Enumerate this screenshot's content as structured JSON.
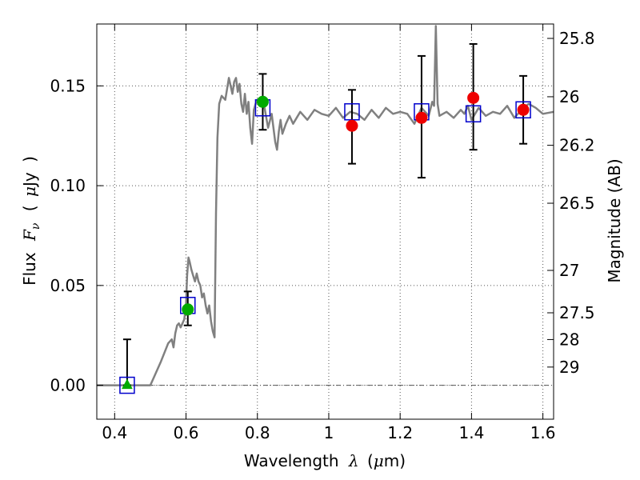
{
  "chart_data": {
    "type": "scatter",
    "xlabel": {
      "prefix": "Wavelength",
      "symbol": "λ",
      "unit_open": "(",
      "unit_mu": "μ",
      "unit_rest": "m)"
    },
    "ylabel": {
      "prefix": "Flux",
      "symbol": "F",
      "subscript": "ν",
      "unit_open": "(",
      "unit_mu": "μ",
      "unit_rest": "Jy",
      "unit_close": ")"
    },
    "y2label": "Magnitude (AB)",
    "xlim": [
      0.35,
      1.63
    ],
    "ylim": [
      -0.017,
      0.181
    ],
    "grid": true,
    "x_ticks": [
      {
        "value": 0.4,
        "label": "0.4"
      },
      {
        "value": 0.6,
        "label": "0.6"
      },
      {
        "value": 0.8,
        "label": "0.8"
      },
      {
        "value": 1.0,
        "label": "1"
      },
      {
        "value": 1.2,
        "label": "1.2"
      },
      {
        "value": 1.4,
        "label": "1.4"
      },
      {
        "value": 1.6,
        "label": "1.6"
      }
    ],
    "y_ticks": [
      {
        "value": 0.0,
        "label": "0.00"
      },
      {
        "value": 0.05,
        "label": "0.05"
      },
      {
        "value": 0.1,
        "label": "0.10"
      },
      {
        "value": 0.15,
        "label": "0.15"
      }
    ],
    "y2_ticks": [
      {
        "mag": 25.8,
        "label": "25.8"
      },
      {
        "mag": 26.0,
        "label": "26"
      },
      {
        "mag": 26.2,
        "label": "26.2"
      },
      {
        "mag": 26.5,
        "label": "26.5"
      },
      {
        "mag": 27.0,
        "label": "27"
      },
      {
        "mag": 27.5,
        "label": "27.5"
      },
      {
        "mag": 28.0,
        "label": "28"
      },
      {
        "mag": 29.0,
        "label": "29"
      }
    ],
    "colors": {
      "model": "#808080",
      "model_points": "#0000cc",
      "observed": "#00aa00",
      "observed_red": "#ee0000",
      "errorbar": "#000000",
      "grid": "#555555"
    },
    "series": [
      {
        "kind": "model-spectrum",
        "x": [
          0.35,
          0.4,
          0.45,
          0.5,
          0.51,
          0.53,
          0.55,
          0.56,
          0.565,
          0.57,
          0.575,
          0.58,
          0.585,
          0.59,
          0.595,
          0.6,
          0.603,
          0.607,
          0.61,
          0.615,
          0.62,
          0.625,
          0.63,
          0.635,
          0.64,
          0.645,
          0.65,
          0.655,
          0.66,
          0.665,
          0.67,
          0.675,
          0.68,
          0.684,
          0.688,
          0.693,
          0.7,
          0.71,
          0.72,
          0.73,
          0.735,
          0.74,
          0.745,
          0.75,
          0.755,
          0.76,
          0.765,
          0.77,
          0.775,
          0.78,
          0.785,
          0.79,
          0.795,
          0.8,
          0.81,
          0.82,
          0.83,
          0.84,
          0.85,
          0.855,
          0.86,
          0.865,
          0.87,
          0.88,
          0.89,
          0.9,
          0.92,
          0.94,
          0.96,
          0.98,
          1.0,
          1.02,
          1.04,
          1.06,
          1.08,
          1.1,
          1.12,
          1.14,
          1.16,
          1.18,
          1.2,
          1.22,
          1.24,
          1.26,
          1.28,
          1.29,
          1.295,
          1.3,
          1.305,
          1.31,
          1.33,
          1.35,
          1.37,
          1.38,
          1.39,
          1.4,
          1.42,
          1.44,
          1.46,
          1.48,
          1.5,
          1.52,
          1.54,
          1.56,
          1.58,
          1.6,
          1.63
        ],
        "y": [
          0.0,
          0.0,
          0.0,
          0.0,
          0.004,
          0.012,
          0.021,
          0.023,
          0.019,
          0.026,
          0.03,
          0.031,
          0.029,
          0.031,
          0.033,
          0.04,
          0.055,
          0.064,
          0.062,
          0.058,
          0.055,
          0.052,
          0.056,
          0.052,
          0.05,
          0.044,
          0.046,
          0.04,
          0.036,
          0.04,
          0.032,
          0.027,
          0.024,
          0.086,
          0.124,
          0.141,
          0.145,
          0.143,
          0.154,
          0.146,
          0.152,
          0.154,
          0.147,
          0.151,
          0.141,
          0.137,
          0.146,
          0.136,
          0.142,
          0.129,
          0.121,
          0.138,
          0.141,
          0.143,
          0.14,
          0.139,
          0.129,
          0.136,
          0.122,
          0.118,
          0.127,
          0.133,
          0.126,
          0.131,
          0.135,
          0.131,
          0.137,
          0.133,
          0.138,
          0.136,
          0.135,
          0.139,
          0.134,
          0.137,
          0.136,
          0.133,
          0.138,
          0.134,
          0.139,
          0.136,
          0.137,
          0.136,
          0.131,
          0.139,
          0.135,
          0.142,
          0.14,
          0.18,
          0.141,
          0.135,
          0.137,
          0.134,
          0.138,
          0.136,
          0.14,
          0.133,
          0.139,
          0.135,
          0.137,
          0.136,
          0.14,
          0.134,
          0.138,
          0.141,
          0.139,
          0.136,
          0.137
        ]
      },
      {
        "kind": "model-points",
        "marker": "open-square",
        "x": [
          0.435,
          0.605,
          0.815,
          1.065,
          1.26,
          1.405,
          1.545
        ],
        "y": [
          0.0,
          0.04,
          0.139,
          0.137,
          0.137,
          0.136,
          0.138
        ]
      },
      {
        "kind": "observed",
        "x": [
          0.435,
          0.605,
          0.815,
          1.065,
          1.26,
          1.405,
          1.545
        ],
        "y": [
          0.0,
          0.038,
          0.142,
          0.13,
          0.134,
          0.144,
          0.138
        ],
        "yerr_low": [
          0.0,
          0.03,
          0.128,
          0.111,
          0.104,
          0.118,
          0.121
        ],
        "yerr_high": [
          0.023,
          0.047,
          0.156,
          0.148,
          0.165,
          0.171,
          0.155
        ],
        "markers": [
          "triangle",
          "circle",
          "circle",
          "circle",
          "circle",
          "circle",
          "circle"
        ],
        "marker_colors": [
          "green",
          "green",
          "green",
          "red",
          "red",
          "red",
          "red"
        ]
      }
    ]
  }
}
